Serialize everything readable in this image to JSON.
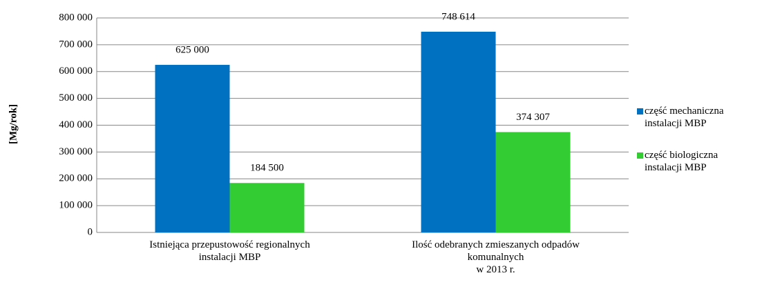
{
  "chart_data": {
    "type": "bar",
    "y_label": "[Mg/rok]",
    "categories": [
      "Istniejąca przepustowość regionalnych\ninstalacji MBP",
      "Ilość odebranych zmieszanych odpadów\nkomunalnych\nw 2013 r."
    ],
    "series": [
      {
        "name": "część mechaniczna\ninstalacji MBP",
        "color": "#0070c0",
        "values": [
          625000,
          748614
        ],
        "value_labels": [
          "625 000",
          "748 614"
        ]
      },
      {
        "name": "część biologiczna\ninstalacji MBP",
        "color": "#33cc33",
        "values": [
          184500,
          374307
        ],
        "value_labels": [
          "184 500",
          "374 307"
        ]
      }
    ],
    "ylim": [
      0,
      800000
    ],
    "yticks": [
      0,
      {
        "value": 100000,
        "label": "100 000"
      },
      {
        "value": 200000,
        "label": "200 000"
      },
      {
        "value": 300000,
        "label": "300 000"
      },
      {
        "value": 400000,
        "label": "400 000"
      },
      {
        "value": 500000,
        "label": "500 000"
      },
      {
        "value": 600000,
        "label": "600 000"
      },
      {
        "value": 700000,
        "label": "700 000"
      },
      {
        "value": 800000,
        "label": "800 000"
      }
    ],
    "grid": true,
    "legend": "right"
  }
}
